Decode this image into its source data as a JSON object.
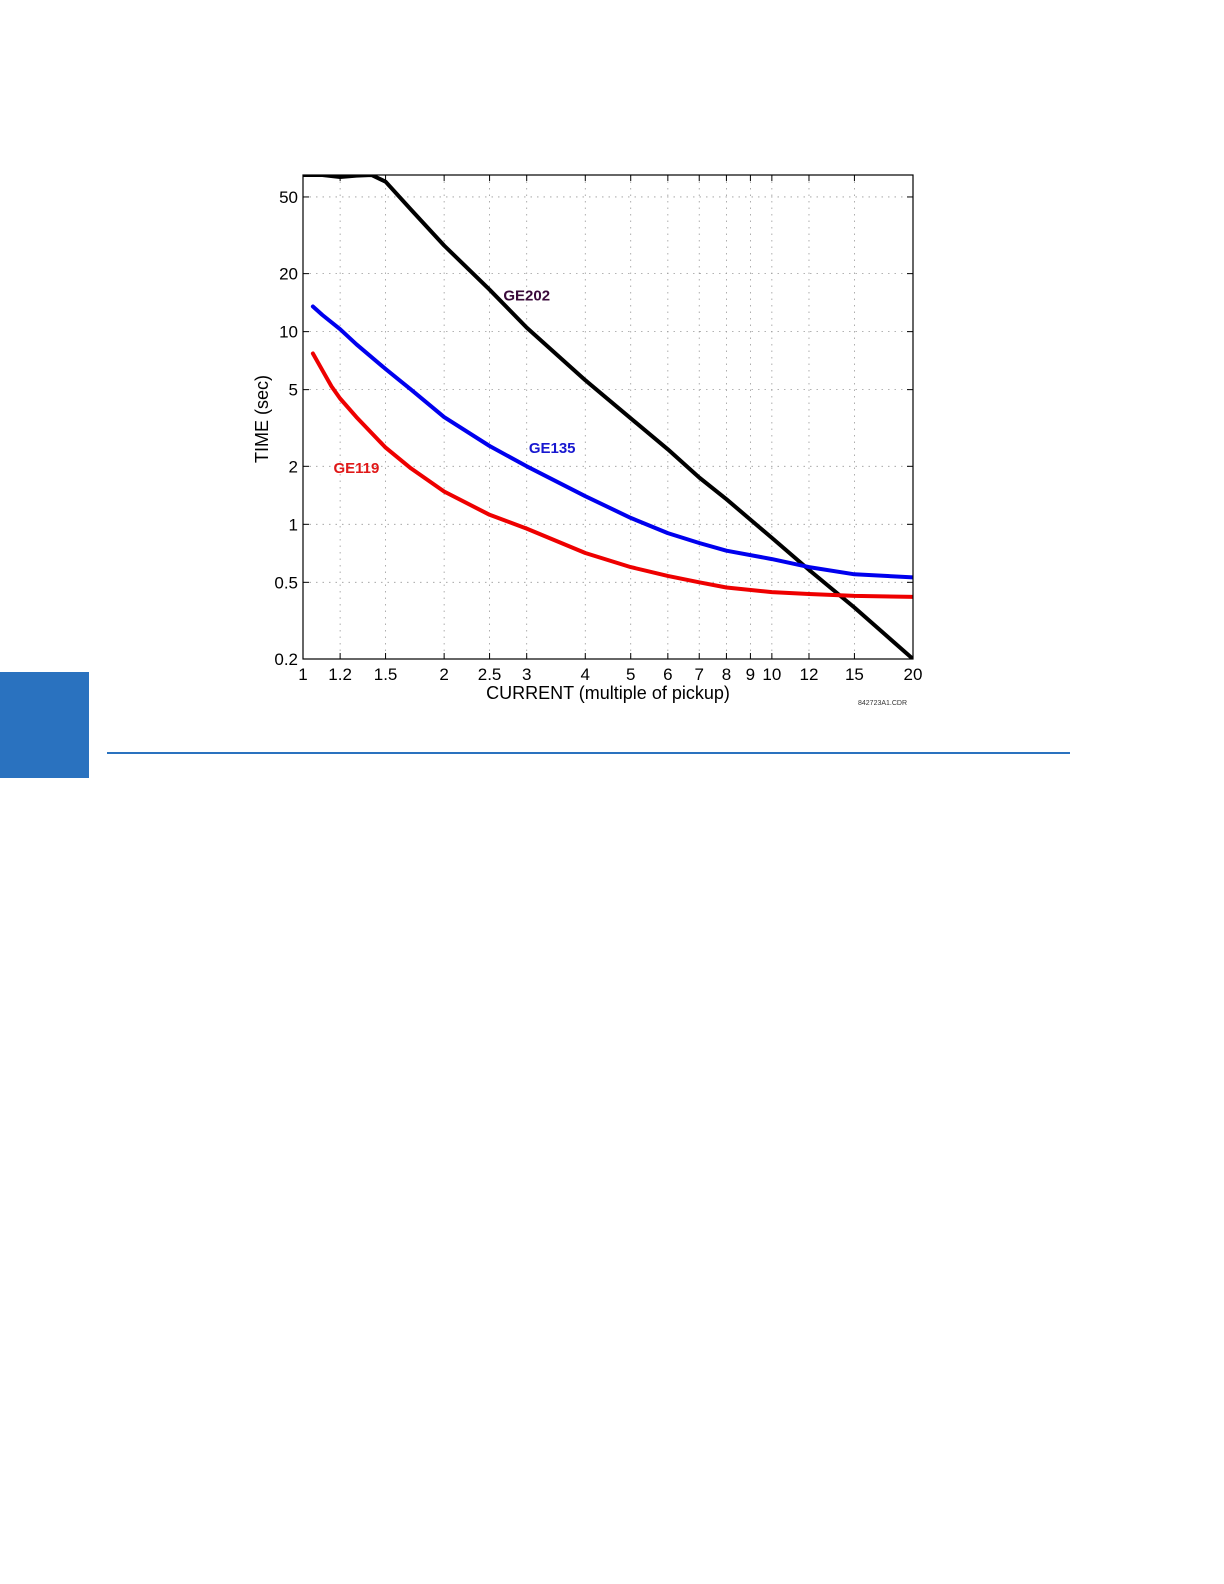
{
  "colors": {
    "accent": "#2a72bf"
  },
  "chart_data": {
    "type": "line",
    "title": "",
    "xlabel": "CURRENT (multiple of pickup)",
    "ylabel": "TIME (sec)",
    "x_scale": "log",
    "y_scale": "log",
    "xlim": [
      1,
      20
    ],
    "ylim": [
      0.2,
      65
    ],
    "x_ticks": [
      1,
      1.2,
      1.5,
      2,
      2.5,
      3,
      4,
      5,
      6,
      7,
      8,
      9,
      10,
      12,
      15,
      20
    ],
    "x_tick_labels": [
      "1",
      "1.2",
      "1.5",
      "2",
      "2.5",
      "3",
      "4",
      "5",
      "6",
      "7",
      "8",
      "9",
      "10",
      "12",
      "15",
      "20"
    ],
    "y_ticks": [
      0.2,
      0.5,
      1,
      2,
      5,
      10,
      20,
      50
    ],
    "y_tick_labels": [
      "0.2",
      "0.5",
      "1",
      "2",
      "5",
      "10",
      "20",
      "50"
    ],
    "grid": true,
    "figure_id": "842723A1.CDR",
    "series": [
      {
        "name": "GE202",
        "color": "#000000",
        "label_color": "#3a0a3a",
        "x": [
          1,
          1.1,
          1.2,
          1.3,
          1.4,
          1.5,
          1.7,
          2,
          2.5,
          3,
          4,
          5,
          6,
          7,
          8,
          10,
          12,
          15,
          20
        ],
        "y": [
          65,
          65,
          63.5,
          64.5,
          65,
          60,
          43,
          28,
          16.5,
          10.5,
          5.6,
          3.55,
          2.45,
          1.75,
          1.35,
          0.85,
          0.58,
          0.37,
          0.2
        ]
      },
      {
        "name": "GE135",
        "color": "#0000ee",
        "label_color": "#1818d0",
        "x": [
          1.05,
          1.1,
          1.2,
          1.3,
          1.5,
          1.7,
          2,
          2.5,
          3,
          4,
          5,
          6,
          7,
          8,
          10,
          12,
          15,
          20
        ],
        "y": [
          13.5,
          12.2,
          10.3,
          8.6,
          6.4,
          5.0,
          3.6,
          2.55,
          2.0,
          1.4,
          1.08,
          0.9,
          0.8,
          0.73,
          0.66,
          0.6,
          0.55,
          0.53
        ]
      },
      {
        "name": "GE119",
        "color": "#ee0000",
        "label_color": "#e01818",
        "x": [
          1.05,
          1.1,
          1.15,
          1.2,
          1.3,
          1.5,
          1.7,
          2,
          2.5,
          3,
          4,
          5,
          6,
          7,
          8,
          10,
          12,
          15,
          20
        ],
        "y": [
          7.7,
          6.3,
          5.2,
          4.5,
          3.6,
          2.5,
          1.95,
          1.48,
          1.12,
          0.95,
          0.71,
          0.6,
          0.54,
          0.5,
          0.47,
          0.445,
          0.435,
          0.425,
          0.42
        ]
      }
    ],
    "labels": [
      {
        "text": "GE202",
        "x": 3.0,
        "y": 14.5
      },
      {
        "text": "GE135",
        "x": 3.4,
        "y": 2.35
      },
      {
        "text": "GE119",
        "x": 1.3,
        "y": 1.85
      }
    ]
  }
}
